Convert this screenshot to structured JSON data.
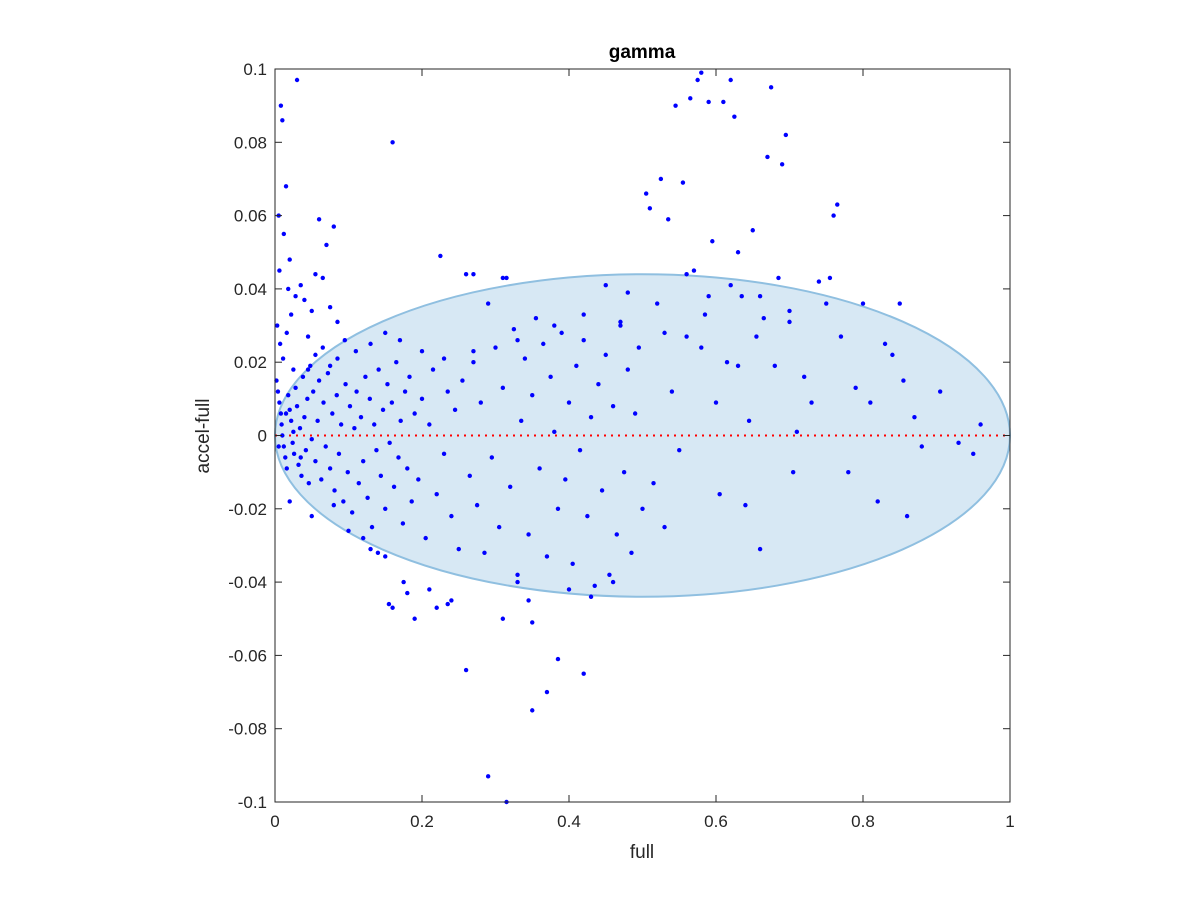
{
  "chart_data": {
    "type": "scatter",
    "title": "gamma",
    "xlabel": "full",
    "ylabel": "accel-full",
    "xlim": [
      0,
      1
    ],
    "ylim": [
      -0.1,
      0.1
    ],
    "xticks": [
      "0",
      "0.2",
      "0.4",
      "0.6",
      "0.8",
      "1"
    ],
    "xtick_values": [
      0,
      0.2,
      0.4,
      0.6,
      0.8,
      1
    ],
    "yticks": [
      "-0.1",
      "-0.08",
      "-0.06",
      "-0.04",
      "-0.02",
      "0",
      "0.02",
      "0.04",
      "0.06",
      "0.08",
      "0.1"
    ],
    "ytick_values": [
      -0.1,
      -0.08,
      -0.06,
      -0.04,
      -0.02,
      0,
      0.02,
      0.04,
      0.06,
      0.08,
      0.1
    ],
    "grid": false,
    "marker_color": "#0000ff",
    "ellipse": {
      "center": [
        0.5,
        0.0
      ],
      "radii": [
        0.5,
        0.044
      ],
      "fill": "#d7e8f4",
      "stroke": "#8fbfe0"
    },
    "reference_line": {
      "y": 0,
      "color": "#ff0000",
      "style": "dotted"
    },
    "series": [
      {
        "points": [
          [
            0.005,
            0.06
          ],
          [
            0.008,
            0.09
          ],
          [
            0.01,
            0.086
          ],
          [
            0.015,
            0.068
          ],
          [
            0.03,
            0.097
          ],
          [
            0.012,
            0.055
          ],
          [
            0.02,
            0.048
          ],
          [
            0.006,
            0.045
          ],
          [
            0.018,
            0.04
          ],
          [
            0.04,
            0.037
          ],
          [
            0.05,
            0.034
          ],
          [
            0.06,
            0.059
          ],
          [
            0.07,
            0.052
          ],
          [
            0.08,
            0.057
          ],
          [
            0.055,
            0.044
          ],
          [
            0.065,
            0.043
          ],
          [
            0.075,
            0.035
          ],
          [
            0.085,
            0.031
          ],
          [
            0.003,
            0.03
          ],
          [
            0.007,
            0.025
          ],
          [
            0.011,
            0.021
          ],
          [
            0.016,
            0.028
          ],
          [
            0.022,
            0.033
          ],
          [
            0.025,
            0.018
          ],
          [
            0.028,
            0.038
          ],
          [
            0.035,
            0.041
          ],
          [
            0.045,
            0.027
          ],
          [
            0.002,
            0.015
          ],
          [
            0.004,
            0.012
          ],
          [
            0.006,
            0.009
          ],
          [
            0.008,
            0.006
          ],
          [
            0.009,
            0.003
          ],
          [
            0.01,
            0.0
          ],
          [
            0.012,
            -0.003
          ],
          [
            0.014,
            -0.006
          ],
          [
            0.016,
            -0.009
          ],
          [
            0.018,
            0.011
          ],
          [
            0.02,
            0.007
          ],
          [
            0.022,
            0.004
          ],
          [
            0.024,
            -0.002
          ],
          [
            0.026,
            -0.005
          ],
          [
            0.028,
            0.013
          ],
          [
            0.03,
            0.008
          ],
          [
            0.032,
            -0.008
          ],
          [
            0.034,
            0.002
          ],
          [
            0.036,
            -0.011
          ],
          [
            0.038,
            0.016
          ],
          [
            0.04,
            0.005
          ],
          [
            0.042,
            -0.004
          ],
          [
            0.044,
            0.01
          ],
          [
            0.046,
            -0.013
          ],
          [
            0.048,
            0.019
          ],
          [
            0.05,
            -0.001
          ],
          [
            0.052,
            0.012
          ],
          [
            0.055,
            -0.007
          ],
          [
            0.058,
            0.004
          ],
          [
            0.06,
            0.015
          ],
          [
            0.063,
            -0.012
          ],
          [
            0.066,
            0.009
          ],
          [
            0.069,
            -0.003
          ],
          [
            0.072,
            0.017
          ],
          [
            0.075,
            -0.009
          ],
          [
            0.078,
            0.006
          ],
          [
            0.081,
            -0.015
          ],
          [
            0.084,
            0.011
          ],
          [
            0.087,
            -0.005
          ],
          [
            0.09,
            0.003
          ],
          [
            0.093,
            -0.018
          ],
          [
            0.096,
            0.014
          ],
          [
            0.099,
            -0.01
          ],
          [
            0.102,
            0.008
          ],
          [
            0.105,
            -0.021
          ],
          [
            0.108,
            0.002
          ],
          [
            0.111,
            0.012
          ],
          [
            0.114,
            -0.013
          ],
          [
            0.117,
            0.005
          ],
          [
            0.12,
            -0.007
          ],
          [
            0.123,
            0.016
          ],
          [
            0.126,
            -0.017
          ],
          [
            0.129,
            0.01
          ],
          [
            0.132,
            -0.025
          ],
          [
            0.135,
            0.003
          ],
          [
            0.138,
            -0.004
          ],
          [
            0.141,
            0.018
          ],
          [
            0.144,
            -0.011
          ],
          [
            0.147,
            0.007
          ],
          [
            0.15,
            -0.02
          ],
          [
            0.153,
            0.014
          ],
          [
            0.156,
            -0.002
          ],
          [
            0.159,
            0.009
          ],
          [
            0.162,
            -0.014
          ],
          [
            0.165,
            0.02
          ],
          [
            0.168,
            -0.006
          ],
          [
            0.171,
            0.004
          ],
          [
            0.174,
            -0.024
          ],
          [
            0.177,
            0.012
          ],
          [
            0.18,
            -0.009
          ],
          [
            0.183,
            0.016
          ],
          [
            0.186,
            -0.018
          ],
          [
            0.19,
            0.006
          ],
          [
            0.195,
            -0.012
          ],
          [
            0.2,
            0.01
          ],
          [
            0.205,
            -0.028
          ],
          [
            0.21,
            0.003
          ],
          [
            0.215,
            0.018
          ],
          [
            0.22,
            -0.016
          ],
          [
            0.225,
            0.049
          ],
          [
            0.23,
            -0.005
          ],
          [
            0.235,
            0.012
          ],
          [
            0.24,
            -0.022
          ],
          [
            0.245,
            0.007
          ],
          [
            0.25,
            -0.031
          ],
          [
            0.255,
            0.015
          ],
          [
            0.26,
            0.044
          ],
          [
            0.265,
            -0.011
          ],
          [
            0.27,
            0.02
          ],
          [
            0.275,
            -0.019
          ],
          [
            0.28,
            0.009
          ],
          [
            0.285,
            -0.032
          ],
          [
            0.29,
            0.036
          ],
          [
            0.295,
            -0.006
          ],
          [
            0.3,
            0.024
          ],
          [
            0.305,
            -0.025
          ],
          [
            0.31,
            0.013
          ],
          [
            0.315,
            0.043
          ],
          [
            0.32,
            -0.014
          ],
          [
            0.325,
            0.029
          ],
          [
            0.33,
            -0.038
          ],
          [
            0.335,
            0.004
          ],
          [
            0.34,
            0.021
          ],
          [
            0.345,
            -0.027
          ],
          [
            0.35,
            0.011
          ],
          [
            0.355,
            0.032
          ],
          [
            0.36,
            -0.009
          ],
          [
            0.365,
            0.025
          ],
          [
            0.37,
            -0.033
          ],
          [
            0.375,
            0.016
          ],
          [
            0.38,
            0.001
          ],
          [
            0.385,
            -0.02
          ],
          [
            0.39,
            0.028
          ],
          [
            0.395,
            -0.012
          ],
          [
            0.4,
            0.009
          ],
          [
            0.405,
            -0.035
          ],
          [
            0.41,
            0.019
          ],
          [
            0.415,
            -0.004
          ],
          [
            0.42,
            0.026
          ],
          [
            0.425,
            -0.022
          ],
          [
            0.43,
            0.005
          ],
          [
            0.435,
            -0.041
          ],
          [
            0.44,
            0.014
          ],
          [
            0.445,
            -0.015
          ],
          [
            0.45,
            0.022
          ],
          [
            0.455,
            -0.038
          ],
          [
            0.46,
            0.008
          ],
          [
            0.465,
            -0.027
          ],
          [
            0.47,
            0.031
          ],
          [
            0.475,
            -0.01
          ],
          [
            0.48,
            0.018
          ],
          [
            0.485,
            -0.032
          ],
          [
            0.49,
            0.006
          ],
          [
            0.495,
            0.024
          ],
          [
            0.5,
            -0.02
          ],
          [
            0.505,
            0.066
          ],
          [
            0.51,
            0.062
          ],
          [
            0.515,
            -0.013
          ],
          [
            0.52,
            0.036
          ],
          [
            0.525,
            0.07
          ],
          [
            0.53,
            -0.025
          ],
          [
            0.535,
            0.059
          ],
          [
            0.54,
            0.012
          ],
          [
            0.545,
            0.09
          ],
          [
            0.55,
            -0.004
          ],
          [
            0.555,
            0.069
          ],
          [
            0.56,
            0.027
          ],
          [
            0.565,
            0.092
          ],
          [
            0.57,
            0.045
          ],
          [
            0.575,
            0.097
          ],
          [
            0.58,
            0.099
          ],
          [
            0.585,
            0.033
          ],
          [
            0.59,
            0.091
          ],
          [
            0.595,
            0.053
          ],
          [
            0.6,
            0.009
          ],
          [
            0.605,
            -0.016
          ],
          [
            0.61,
            0.091
          ],
          [
            0.615,
            0.02
          ],
          [
            0.62,
            0.097
          ],
          [
            0.625,
            0.087
          ],
          [
            0.63,
            0.05
          ],
          [
            0.635,
            0.038
          ],
          [
            0.64,
            -0.019
          ],
          [
            0.645,
            0.004
          ],
          [
            0.65,
            0.056
          ],
          [
            0.655,
            0.027
          ],
          [
            0.66,
            -0.031
          ],
          [
            0.665,
            0.032
          ],
          [
            0.67,
            0.076
          ],
          [
            0.675,
            0.095
          ],
          [
            0.68,
            0.019
          ],
          [
            0.685,
            0.043
          ],
          [
            0.69,
            0.074
          ],
          [
            0.695,
            0.082
          ],
          [
            0.7,
            0.031
          ],
          [
            0.705,
            -0.01
          ],
          [
            0.71,
            0.001
          ],
          [
            0.72,
            0.016
          ],
          [
            0.73,
            0.009
          ],
          [
            0.74,
            0.042
          ],
          [
            0.75,
            0.036
          ],
          [
            0.755,
            0.043
          ],
          [
            0.76,
            0.06
          ],
          [
            0.765,
            0.063
          ],
          [
            0.77,
            0.027
          ],
          [
            0.78,
            -0.01
          ],
          [
            0.79,
            0.013
          ],
          [
            0.8,
            0.036
          ],
          [
            0.81,
            0.009
          ],
          [
            0.82,
            -0.018
          ],
          [
            0.83,
            0.025
          ],
          [
            0.84,
            0.022
          ],
          [
            0.85,
            0.036
          ],
          [
            0.855,
            0.015
          ],
          [
            0.86,
            -0.022
          ],
          [
            0.87,
            0.005
          ],
          [
            0.88,
            -0.003
          ],
          [
            0.905,
            0.012
          ],
          [
            0.93,
            -0.002
          ],
          [
            0.95,
            -0.005
          ],
          [
            0.96,
            0.003
          ],
          [
            0.14,
            -0.032
          ],
          [
            0.155,
            -0.046
          ],
          [
            0.16,
            -0.047
          ],
          [
            0.175,
            -0.04
          ],
          [
            0.18,
            -0.043
          ],
          [
            0.19,
            -0.05
          ],
          [
            0.21,
            -0.042
          ],
          [
            0.22,
            -0.047
          ],
          [
            0.235,
            -0.046
          ],
          [
            0.24,
            -0.045
          ],
          [
            0.26,
            -0.064
          ],
          [
            0.29,
            -0.093
          ],
          [
            0.31,
            -0.05
          ],
          [
            0.315,
            -0.1
          ],
          [
            0.33,
            -0.04
          ],
          [
            0.345,
            -0.045
          ],
          [
            0.35,
            -0.051
          ],
          [
            0.35,
            -0.075
          ],
          [
            0.37,
            -0.07
          ],
          [
            0.385,
            -0.061
          ],
          [
            0.4,
            -0.042
          ],
          [
            0.42,
            -0.065
          ],
          [
            0.43,
            -0.044
          ],
          [
            0.46,
            -0.04
          ],
          [
            0.16,
            0.08
          ],
          [
            0.27,
            0.044
          ],
          [
            0.31,
            0.043
          ],
          [
            0.45,
            0.041
          ],
          [
            0.48,
            0.039
          ],
          [
            0.56,
            0.044
          ],
          [
            0.59,
            0.038
          ],
          [
            0.62,
            0.041
          ],
          [
            0.66,
            0.038
          ],
          [
            0.7,
            0.034
          ],
          [
            0.02,
            -0.018
          ],
          [
            0.05,
            -0.022
          ],
          [
            0.08,
            -0.019
          ],
          [
            0.1,
            -0.026
          ],
          [
            0.12,
            -0.028
          ],
          [
            0.13,
            -0.031
          ],
          [
            0.15,
            -0.033
          ],
          [
            0.005,
            -0.003
          ],
          [
            0.015,
            0.006
          ],
          [
            0.025,
            0.001
          ],
          [
            0.035,
            -0.006
          ],
          [
            0.045,
            0.018
          ],
          [
            0.055,
            0.022
          ],
          [
            0.065,
            0.024
          ],
          [
            0.075,
            0.019
          ],
          [
            0.085,
            0.021
          ],
          [
            0.095,
            0.026
          ],
          [
            0.11,
            0.023
          ],
          [
            0.13,
            0.025
          ],
          [
            0.15,
            0.028
          ],
          [
            0.17,
            0.026
          ],
          [
            0.2,
            0.023
          ],
          [
            0.23,
            0.021
          ],
          [
            0.27,
            0.023
          ],
          [
            0.33,
            0.026
          ],
          [
            0.38,
            0.03
          ],
          [
            0.42,
            0.033
          ],
          [
            0.47,
            0.03
          ],
          [
            0.53,
            0.028
          ],
          [
            0.58,
            0.024
          ],
          [
            0.63,
            0.019
          ]
        ]
      }
    ]
  }
}
